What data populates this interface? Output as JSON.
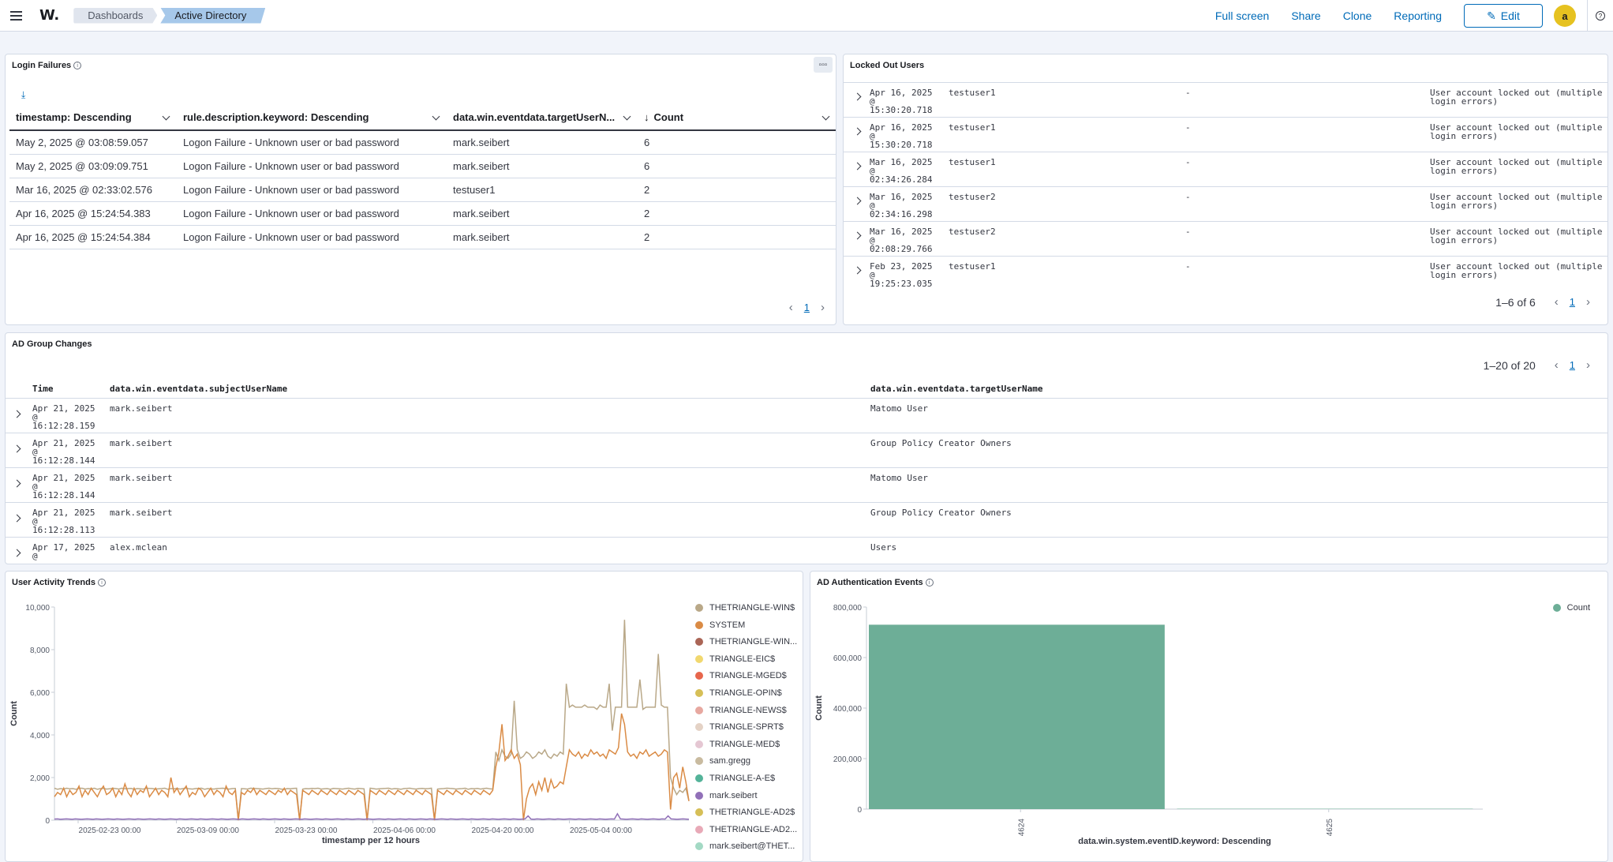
{
  "header": {
    "logo": "W.",
    "breadcrumbs": [
      "Dashboards",
      "Active Directory"
    ],
    "actions": [
      "Full screen",
      "Share",
      "Clone",
      "Reporting"
    ],
    "edit_label": "Edit",
    "avatar": "a"
  },
  "login_failures": {
    "title": "Login Failures",
    "columns": [
      "timestamp: Descending",
      "rule.description.keyword: Descending",
      "data.win.eventdata.targetUserN...",
      "Count"
    ],
    "rows": [
      [
        "May 2, 2025 @ 03:08:59.057",
        "Logon Failure - Unknown user or bad password",
        "mark.seibert",
        "6"
      ],
      [
        "May 2, 2025 @ 03:09:09.751",
        "Logon Failure - Unknown user or bad password",
        "mark.seibert",
        "6"
      ],
      [
        "Mar 16, 2025 @ 02:33:02.576",
        "Logon Failure - Unknown user or bad password",
        "testuser1",
        "2"
      ],
      [
        "Apr 16, 2025 @ 15:24:54.383",
        "Logon Failure - Unknown user or bad password",
        "mark.seibert",
        "2"
      ],
      [
        "Apr 16, 2025 @ 15:24:54.384",
        "Logon Failure - Unknown user or bad password",
        "mark.seibert",
        "2"
      ]
    ],
    "page": "1"
  },
  "locked_out": {
    "title": "Locked Out Users",
    "rows": [
      {
        "date": "Apr 16, 2025",
        "at": "@",
        "time": "15:30:20.718",
        "user": "testuser1",
        "dash": "-",
        "msg1": "User account locked out (multiple",
        "msg2": "login errors)"
      },
      {
        "date": "Apr 16, 2025",
        "at": "@",
        "time": "15:30:20.718",
        "user": "testuser1",
        "dash": "-",
        "msg1": "User account locked out (multiple",
        "msg2": "login errors)"
      },
      {
        "date": "Mar 16, 2025",
        "at": "@",
        "time": "02:34:26.284",
        "user": "testuser1",
        "dash": "-",
        "msg1": "User account locked out (multiple",
        "msg2": "login errors)"
      },
      {
        "date": "Mar 16, 2025",
        "at": "@",
        "time": "02:34:16.298",
        "user": "testuser2",
        "dash": "-",
        "msg1": "User account locked out (multiple",
        "msg2": "login errors)"
      },
      {
        "date": "Mar 16, 2025",
        "at": "@",
        "time": "02:08:29.766",
        "user": "testuser2",
        "dash": "-",
        "msg1": "User account locked out (multiple",
        "msg2": "login errors)"
      },
      {
        "date": "Feb 23, 2025",
        "at": "@",
        "time": "19:25:23.035",
        "user": "testuser1",
        "dash": "-",
        "msg1": "User account locked out (multiple",
        "msg2": "login errors)"
      }
    ],
    "range": "1–6 of 6",
    "page": "1"
  },
  "group_changes": {
    "title": "AD Group Changes",
    "range": "1–20 of 20",
    "page": "1",
    "columns": [
      "Time",
      "data.win.eventdata.subjectUserName",
      "data.win.eventdata.targetUserName"
    ],
    "rows": [
      {
        "date": "Apr 21, 2025",
        "at": "@",
        "time": "16:12:28.159",
        "subject": "mark.seibert",
        "target": "Matomo User"
      },
      {
        "date": "Apr 21, 2025",
        "at": "@",
        "time": "16:12:28.144",
        "subject": "mark.seibert",
        "target": "Group Policy Creator Owners"
      },
      {
        "date": "Apr 21, 2025",
        "at": "@",
        "time": "16:12:28.144",
        "subject": "mark.seibert",
        "target": "Matomo User"
      },
      {
        "date": "Apr 21, 2025",
        "at": "@",
        "time": "16:12:28.113",
        "subject": "mark.seibert",
        "target": "Group Policy Creator Owners"
      },
      {
        "date": "Apr 17, 2025",
        "at": "@",
        "time": "",
        "subject": "alex.mclean",
        "target": "Users"
      }
    ]
  },
  "activity": {
    "title": "User Activity Trends",
    "legend": [
      {
        "name": "THETRIANGLE-WIN$",
        "color": "#b9a888"
      },
      {
        "name": "SYSTEM",
        "color": "#da8b45"
      },
      {
        "name": "THETRIANGLE-WIN...",
        "color": "#aa6556"
      },
      {
        "name": "TRIANGLE-EIC$",
        "color": "#f1d86f"
      },
      {
        "name": "TRIANGLE-MGED$",
        "color": "#e7664c"
      },
      {
        "name": "TRIANGLE-OPIN$",
        "color": "#d6bf57"
      },
      {
        "name": "TRIANGLE-NEWS$",
        "color": "#e7a8a0"
      },
      {
        "name": "TRIANGLE-SPRT$",
        "color": "#e4d2c5"
      },
      {
        "name": "TRIANGLE-MED$",
        "color": "#e5c7d3"
      },
      {
        "name": "sam.gregg",
        "color": "#c9bba0"
      },
      {
        "name": "TRIANGLE-A-E$",
        "color": "#54b399"
      },
      {
        "name": "mark.seibert",
        "color": "#9170b8"
      },
      {
        "name": "THETRIANGLE-AD2$",
        "color": "#d6bf57"
      },
      {
        "name": "THETRIANGLE-AD2...",
        "color": "#e8a9b7"
      },
      {
        "name": "mark.seibert@THET...",
        "color": "#a3d9c4"
      }
    ]
  },
  "chart_data": [
    {
      "type": "line",
      "title": "User Activity Trends",
      "xlabel": "timestamp per 12 hours",
      "ylabel": "Count",
      "ylim": [
        0,
        10000
      ],
      "yticks": [
        "10,000",
        "8,000",
        "6,000",
        "4,000",
        "2,000",
        "0"
      ],
      "xticks": [
        "2025-02-23 00:00",
        "2025-03-09 00:00",
        "2025-03-23 00:00",
        "2025-04-06 00:00",
        "2025-04-20 00:00",
        "2025-05-04 00:00"
      ],
      "series": [
        {
          "name": "THETRIANGLE-WIN$",
          "color": "#b9a888",
          "values": [
            1500,
            1450,
            1480,
            1460,
            1500,
            1470,
            1480,
            1450,
            1490,
            1500,
            1460,
            1480,
            1470,
            1500,
            1450,
            1480,
            1490,
            1460,
            1470,
            1500,
            1480,
            1460,
            1500,
            1470,
            1480,
            1490,
            1450,
            1480,
            1470,
            1460,
            1500,
            1490,
            1480,
            1460,
            1470,
            1480,
            1500,
            1450,
            1480,
            1470,
            1490,
            1460,
            1480,
            1500,
            1470,
            1460,
            1480,
            1490,
            1500,
            1450,
            1480,
            1470,
            1460,
            1480,
            1490,
            1500,
            1470,
            1460,
            1480,
            1490,
            0,
            1480,
            1470,
            1460,
            1500,
            1490,
            1480,
            1470,
            1460,
            1480,
            1500,
            1470,
            1490,
            1480,
            1460,
            1450,
            1480,
            1470,
            1490,
            1500,
            0,
            1460,
            1480,
            1470,
            1490,
            1480,
            1500,
            1460,
            1470,
            1480,
            1450,
            1490,
            1480,
            1470,
            1460,
            1480,
            1500,
            1470,
            1460,
            1490,
            1480,
            1470,
            0,
            1500,
            1480,
            1460,
            1470,
            1480,
            1490,
            1500,
            1460,
            1480,
            1470,
            1450,
            1480,
            1490,
            1500,
            1470,
            1460,
            1480,
            1490,
            1470,
            1480,
            1500,
            0,
            1460,
            1470,
            1480,
            1500,
            1490,
            1480,
            1460,
            1470,
            1480,
            1500,
            1450,
            1480,
            1470,
            1490,
            1460,
            1480,
            1500,
            1470,
            1460,
            3200,
            2800,
            3300,
            3000,
            2900,
            3100,
            5600,
            3300,
            2900,
            3000,
            3200,
            3100,
            2900,
            3000,
            3200,
            3100,
            3300,
            3000,
            2900,
            3100,
            3000,
            3200,
            3100,
            6400,
            5300,
            5400,
            5300,
            5300,
            5300,
            5400,
            5300,
            5300,
            5300,
            5200,
            5400,
            5300,
            5300,
            6400,
            4200,
            5300,
            5300,
            5300,
            9400,
            5300,
            5300,
            5300,
            5300,
            6600,
            5200,
            5300,
            5300,
            5300,
            5300,
            7800,
            5400,
            5300,
            5300,
            2000,
            1500,
            1200,
            1400,
            1300,
            1500,
            900
          ]
        },
        {
          "name": "SYSTEM",
          "color": "#da8b45",
          "values": [
            1100,
            1300,
            1200,
            1500,
            1100,
            1400,
            1200,
            1300,
            1600,
            1100,
            1400,
            1200,
            1500,
            1300,
            1100,
            1400,
            1600,
            1200,
            1300,
            1500,
            1100,
            1400,
            1200,
            1700,
            1300,
            1100,
            1500,
            1200,
            1400,
            1300,
            1600,
            1100,
            1300,
            1500,
            1200,
            1400,
            1300,
            1100,
            2000,
            1300,
            1500,
            1200,
            1400,
            1600,
            1100,
            1300,
            1200,
            1500,
            1400,
            1100,
            1300,
            1500,
            1200,
            1400,
            1300,
            1100,
            1600,
            1300,
            1200,
            1400,
            0,
            1300,
            1200,
            1400,
            1300,
            1500,
            1200,
            1400,
            1300,
            1200,
            1400,
            1300,
            1200,
            1400,
            1300,
            1500,
            1200,
            1400,
            1300,
            1200,
            0,
            1400,
            1300,
            1200,
            1400,
            1300,
            1200,
            1400,
            1300,
            1200,
            1400,
            1300,
            1200,
            1400,
            1300,
            1200,
            1400,
            1300,
            1200,
            1400,
            1300,
            1200,
            0,
            1400,
            1300,
            1200,
            1400,
            1300,
            1200,
            1400,
            1300,
            1200,
            1400,
            1300,
            1200,
            1400,
            1300,
            1200,
            1400,
            1300,
            1200,
            1400,
            1300,
            1200,
            0,
            1400,
            1300,
            1200,
            1400,
            1300,
            1200,
            1400,
            1300,
            1200,
            1400,
            1300,
            1200,
            1400,
            1300,
            1200,
            1400,
            1300,
            1200,
            1400,
            2500,
            3200,
            4500,
            2800,
            3000,
            3300,
            2900,
            3100,
            2600,
            0,
            1000,
            1500,
            1700,
            1200,
            1800,
            1400,
            2000,
            1300,
            1900,
            1500,
            1600,
            1800,
            1700,
            2500,
            3300,
            3100,
            3000,
            3200,
            2900,
            3100,
            3000,
            3300,
            3100,
            3200,
            3000,
            3100,
            2900,
            3300,
            3200,
            3100,
            3400,
            5000,
            4500,
            3200,
            3000,
            3100,
            2900,
            3200,
            3100,
            3300,
            3000,
            3100,
            3200,
            3000,
            3100,
            3300,
            3200,
            500,
            2000,
            2200,
            1500,
            2500,
            1800,
            900
          ]
        },
        {
          "name": "mark.seibert",
          "color": "#9170b8",
          "values": [
            50,
            60,
            40,
            50,
            60,
            50,
            40,
            60,
            50,
            40,
            50,
            60,
            50,
            40,
            60,
            50,
            40,
            50,
            60,
            50,
            40,
            60,
            50,
            40,
            50,
            60,
            50,
            40,
            60,
            50,
            40,
            50,
            60,
            50,
            40,
            60,
            50,
            40,
            50,
            60,
            50,
            40,
            60,
            50,
            40,
            50,
            60,
            50,
            40,
            60,
            50,
            40,
            50,
            60,
            50,
            40,
            60,
            50,
            40,
            50,
            60,
            50,
            40,
            60,
            50,
            40,
            50,
            60,
            50,
            40,
            60,
            50,
            40,
            50,
            60,
            50,
            40,
            60,
            50,
            40,
            50,
            60,
            50,
            40,
            60,
            50,
            40,
            50,
            60,
            50,
            40,
            60,
            50,
            40,
            50,
            60,
            50,
            40,
            60,
            50,
            40,
            50,
            60,
            50,
            40,
            60,
            50,
            40,
            50,
            60,
            50,
            40,
            60,
            50,
            40,
            50,
            60,
            50,
            40,
            60,
            50,
            40,
            50,
            60,
            50,
            40,
            60,
            50,
            40,
            50,
            60,
            50,
            40,
            60,
            50,
            40,
            50,
            60,
            50,
            40,
            60,
            50,
            40,
            50,
            60,
            50,
            40,
            60,
            50,
            40,
            50,
            60,
            50,
            40,
            60,
            50,
            40,
            50,
            60,
            200,
            50,
            40,
            60,
            50,
            40,
            50,
            60,
            50,
            40,
            60,
            50,
            40,
            50,
            60,
            50,
            40,
            60,
            50,
            40,
            50,
            60,
            50,
            40,
            60,
            50,
            40,
            50,
            60,
            50,
            300,
            60,
            50,
            40,
            50,
            60,
            50,
            40,
            60,
            50,
            40,
            50,
            60,
            50,
            40,
            60,
            50,
            200,
            60,
            50,
            40,
            50,
            60,
            50,
            40
          ]
        }
      ]
    },
    {
      "type": "bar",
      "title": "AD Authentication Events",
      "xlabel": "data.win.system.eventID.keyword: Descending",
      "ylabel": "Count",
      "ylim": [
        0,
        800000
      ],
      "yticks": [
        "800,000",
        "600,000",
        "400,000",
        "200,000",
        "0"
      ],
      "categories": [
        "4624",
        "4625"
      ],
      "series": [
        {
          "name": "Count",
          "color": "#6dae97",
          "values": [
            730000,
            1500
          ]
        }
      ]
    }
  ]
}
